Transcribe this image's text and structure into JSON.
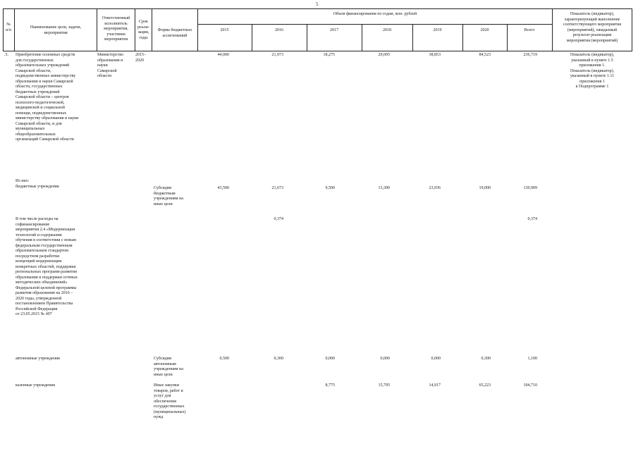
{
  "page_number": "5",
  "header": {
    "num_label": "№\nп/п",
    "name_label": "Наименование цели, задачи,\nмероприятия",
    "executor_label": "Ответственный\nисполнитель\nмероприятия,\nучастники\nмероприятия",
    "term_label": "Срок\nреали-\nзации,\nгоды",
    "form_label": "Форма бюджетных\nассигнований",
    "funding_label": "Объем финансирования по годам, млн. рублей",
    "years": [
      "2015",
      "2016",
      "2017",
      "2018",
      "2019",
      "2020",
      "Всего"
    ],
    "indicator_label": "Показатель (индикатор),\nхарактеризующий выполнение\nсоответствующего мероприятия\n(мероприятий), ожидаемый\nрезультат реализации\nмероприятия (мероприятий)"
  },
  "rows": [
    {
      "num": ".5.",
      "name": "Приобретение основных средств\nдля государственных\nобразовательных учреждений\nСамарской области,\nподведомственных министерству\nобразования и науки Самарской\nобласти, государственных\nбюджетных учреждений\nСамарской области – центров\nпсихолого-педагогической,\nмедицинской и социальной\nпомощи, подведомственных\nминистерству образования и науки\nСамарской области, и для\nмуниципальных\nобщеобразовательных\nорганизаций Самарской области",
      "executor": "Министерство\nобразования и\nнауки\nСамарской\nобласти",
      "term": "2015–\n2020",
      "form": "",
      "values": [
        "44,000",
        "21,973",
        "18,275",
        "29,095",
        "38,853",
        "84,523",
        "236,719"
      ],
      "indicator": "Показатель (индикатор),\nуказанный в пункте 1.5\nприложения 1.\nПоказатель (индикатор),\nуказанный в пункте 1.11\nприложения 1\nк Подпрограмме 1"
    },
    {
      "name": "Из них:\nбюджетные учреждения",
      "form": "Субсидии\nбюджетным\nучреждениям на\nиные цели",
      "values": [
        "43,500",
        "21,673",
        "9,500",
        "13,300",
        "23,936",
        "19,000",
        "130,909"
      ]
    },
    {
      "name": "В том числе расходы на\nсофинансирование\nмероприятия 2.4 «Модернизация\nтехнологий и содержания\nобучения в соответствии с новым\nфедеральным государственным\nобразовательным стандартом\nпосредством разработки\nконцепций модернизации\nконкретных областей, поддержки\nрегиональных программ развития\nобразования и поддержки сетевых\nметодических объединений»\nФедеральной целевой программы\nразвития образования на 2016 –\n2020 годы, утвержденной\nпостановлением Правительства\nРоссийской Федерации\nот 23.05.2015 № 497",
      "form": "",
      "values": [
        "",
        "0,374",
        "",
        "",
        "",
        "",
        "0,374"
      ]
    },
    {
      "name": "автономные учреждения",
      "form": "Субсидии\nавтономным\nучреждениям на\nиные цели",
      "values": [
        "0,500",
        "0,300",
        "0,000",
        "0,000",
        "0,000",
        "0,300",
        "1,100"
      ]
    },
    {
      "name": "казенные учреждения",
      "form": "Иные закупки\nтоваров, работ и\nуслуг для\nобеспечения\nгосударственных\n(муниципальных)\nнужд",
      "values": [
        "",
        "",
        "8,775",
        "15,795",
        "14,917",
        "65,223",
        "104,710"
      ]
    }
  ]
}
